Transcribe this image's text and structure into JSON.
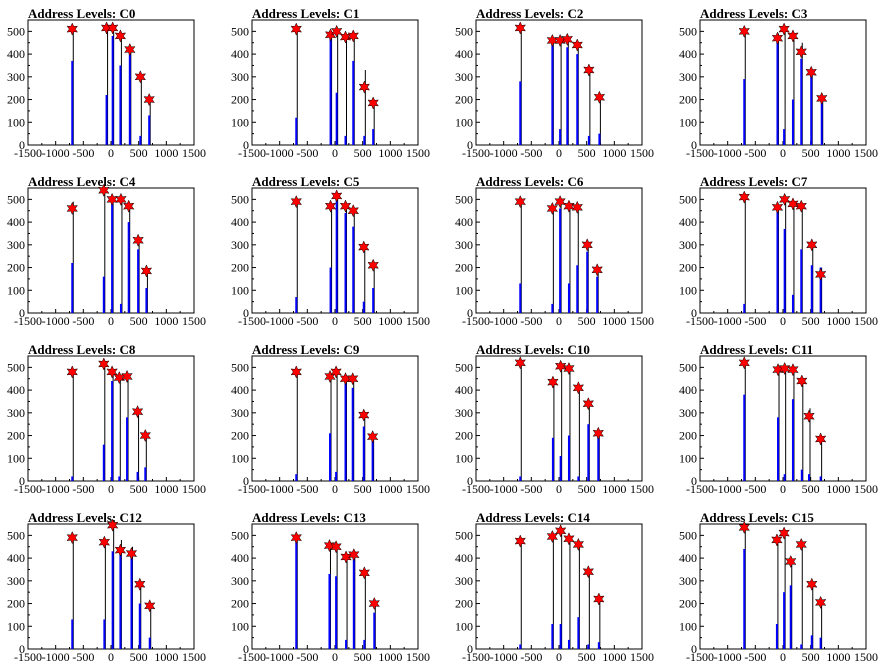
{
  "chart_data": [
    {
      "title": "Address Levels: C0",
      "type": "bar+markers",
      "peaks": [
        {
          "x": -700,
          "y": 510
        },
        {
          "x": -80,
          "y": 515
        },
        {
          "x": 30,
          "y": 515
        },
        {
          "x": 170,
          "y": 480
        },
        {
          "x": 340,
          "y": 420
        },
        {
          "x": 530,
          "y": 300
        },
        {
          "x": 690,
          "y": 200
        }
      ],
      "bars": [
        {
          "x": -700,
          "blue": 370,
          "black": 510
        },
        {
          "x": -80,
          "blue": 220,
          "black": 515
        },
        {
          "x": 30,
          "blue": 480,
          "black": 515
        },
        {
          "x": 170,
          "blue": 350,
          "black": 480
        },
        {
          "x": 340,
          "blue": 410,
          "black": 420
        },
        {
          "x": 530,
          "blue": 40,
          "black": 300
        },
        {
          "x": 690,
          "blue": 130,
          "black": 200
        }
      ]
    },
    {
      "title": "Address Levels: C1",
      "type": "bar+markers",
      "peaks": [
        {
          "x": -700,
          "y": 510
        },
        {
          "x": -80,
          "y": 485
        },
        {
          "x": 30,
          "y": 500
        },
        {
          "x": 190,
          "y": 475
        },
        {
          "x": 330,
          "y": 480
        },
        {
          "x": 530,
          "y": 255
        },
        {
          "x": 690,
          "y": 185
        }
      ],
      "bars": [
        {
          "x": -700,
          "blue": 120,
          "black": 510
        },
        {
          "x": -80,
          "blue": 480,
          "black": 485
        },
        {
          "x": 30,
          "blue": 230,
          "black": 500
        },
        {
          "x": 190,
          "blue": 40,
          "black": 475
        },
        {
          "x": 330,
          "blue": 370,
          "black": 480
        },
        {
          "x": 530,
          "blue": 40,
          "black": 330
        },
        {
          "x": 690,
          "blue": 70,
          "black": 190
        }
      ]
    },
    {
      "title": "Address Levels: C2",
      "type": "bar+markers",
      "peaks": [
        {
          "x": -700,
          "y": 515
        },
        {
          "x": -120,
          "y": 460
        },
        {
          "x": 20,
          "y": 460
        },
        {
          "x": 150,
          "y": 465
        },
        {
          "x": 330,
          "y": 440
        },
        {
          "x": 540,
          "y": 330
        },
        {
          "x": 730,
          "y": 210
        }
      ],
      "bars": [
        {
          "x": -700,
          "blue": 280,
          "black": 515
        },
        {
          "x": -120,
          "blue": 460,
          "black": 470
        },
        {
          "x": 20,
          "blue": 70,
          "black": 480
        },
        {
          "x": 150,
          "blue": 430,
          "black": 465
        },
        {
          "x": 330,
          "blue": 400,
          "black": 440
        },
        {
          "x": 540,
          "blue": 40,
          "black": 330
        },
        {
          "x": 730,
          "blue": 50,
          "black": 210
        }
      ]
    },
    {
      "title": "Address Levels: C3",
      "type": "bar+markers",
      "peaks": [
        {
          "x": -700,
          "y": 500
        },
        {
          "x": -100,
          "y": 470
        },
        {
          "x": 20,
          "y": 510
        },
        {
          "x": 180,
          "y": 480
        },
        {
          "x": 330,
          "y": 410
        },
        {
          "x": 510,
          "y": 320
        },
        {
          "x": 700,
          "y": 205
        }
      ],
      "bars": [
        {
          "x": -700,
          "blue": 290,
          "black": 500
        },
        {
          "x": -100,
          "blue": 480,
          "black": 490
        },
        {
          "x": 20,
          "blue": 70,
          "black": 510
        },
        {
          "x": 180,
          "blue": 200,
          "black": 480
        },
        {
          "x": 330,
          "blue": 380,
          "black": 450
        },
        {
          "x": 510,
          "blue": 320,
          "black": 330
        },
        {
          "x": 700,
          "blue": 200,
          "black": 210
        }
      ]
    },
    {
      "title": "Address Levels: C4",
      "type": "bar+markers",
      "peaks": [
        {
          "x": -700,
          "y": 460
        },
        {
          "x": -130,
          "y": 540
        },
        {
          "x": 20,
          "y": 500
        },
        {
          "x": 180,
          "y": 500
        },
        {
          "x": 320,
          "y": 470
        },
        {
          "x": 490,
          "y": 320
        },
        {
          "x": 640,
          "y": 185
        }
      ],
      "bars": [
        {
          "x": -700,
          "blue": 220,
          "black": 490
        },
        {
          "x": -130,
          "blue": 160,
          "black": 540
        },
        {
          "x": 20,
          "blue": 490,
          "black": 500
        },
        {
          "x": 180,
          "blue": 40,
          "black": 500
        },
        {
          "x": 320,
          "blue": 400,
          "black": 470
        },
        {
          "x": 490,
          "blue": 280,
          "black": 320
        },
        {
          "x": 640,
          "blue": 110,
          "black": 185
        }
      ]
    },
    {
      "title": "Address Levels: C5",
      "type": "bar+markers",
      "peaks": [
        {
          "x": -700,
          "y": 490
        },
        {
          "x": -80,
          "y": 470
        },
        {
          "x": 30,
          "y": 515
        },
        {
          "x": 190,
          "y": 470
        },
        {
          "x": 330,
          "y": 450
        },
        {
          "x": 520,
          "y": 290
        },
        {
          "x": 690,
          "y": 210
        }
      ],
      "bars": [
        {
          "x": -700,
          "blue": 70,
          "black": 490
        },
        {
          "x": -80,
          "blue": 200,
          "black": 470
        },
        {
          "x": 30,
          "blue": 500,
          "black": 515
        },
        {
          "x": 190,
          "blue": 440,
          "black": 470
        },
        {
          "x": 330,
          "blue": 380,
          "black": 450
        },
        {
          "x": 520,
          "blue": 50,
          "black": 290
        },
        {
          "x": 690,
          "blue": 110,
          "black": 210
        }
      ]
    },
    {
      "title": "Address Levels: C6",
      "type": "bar+markers",
      "peaks": [
        {
          "x": -700,
          "y": 490
        },
        {
          "x": -120,
          "y": 460
        },
        {
          "x": 20,
          "y": 490
        },
        {
          "x": 180,
          "y": 470
        },
        {
          "x": 330,
          "y": 465
        },
        {
          "x": 510,
          "y": 300
        },
        {
          "x": 690,
          "y": 190
        }
      ],
      "bars": [
        {
          "x": -700,
          "blue": 130,
          "black": 490
        },
        {
          "x": -120,
          "blue": 40,
          "black": 460
        },
        {
          "x": 20,
          "blue": 460,
          "black": 490
        },
        {
          "x": 180,
          "blue": 130,
          "black": 470
        },
        {
          "x": 330,
          "blue": 210,
          "black": 465
        },
        {
          "x": 510,
          "blue": 270,
          "black": 300
        },
        {
          "x": 690,
          "blue": 160,
          "black": 190
        }
      ]
    },
    {
      "title": "Address Levels: C7",
      "type": "bar+markers",
      "peaks": [
        {
          "x": -700,
          "y": 510
        },
        {
          "x": -100,
          "y": 465
        },
        {
          "x": 30,
          "y": 500
        },
        {
          "x": 180,
          "y": 480
        },
        {
          "x": 330,
          "y": 470
        },
        {
          "x": 520,
          "y": 300
        },
        {
          "x": 680,
          "y": 170
        }
      ],
      "bars": [
        {
          "x": -700,
          "blue": 40,
          "black": 510
        },
        {
          "x": -100,
          "blue": 460,
          "black": 480
        },
        {
          "x": 30,
          "blue": 370,
          "black": 500
        },
        {
          "x": 180,
          "blue": 80,
          "black": 480
        },
        {
          "x": 330,
          "blue": 280,
          "black": 470
        },
        {
          "x": 520,
          "blue": 210,
          "black": 300
        },
        {
          "x": 680,
          "blue": 200,
          "black": 200
        }
      ]
    },
    {
      "title": "Address Levels: C8",
      "type": "bar+markers",
      "peaks": [
        {
          "x": -700,
          "y": 480
        },
        {
          "x": -130,
          "y": 515
        },
        {
          "x": 20,
          "y": 480
        },
        {
          "x": 150,
          "y": 455
        },
        {
          "x": 290,
          "y": 460
        },
        {
          "x": 480,
          "y": 305
        },
        {
          "x": 620,
          "y": 200
        }
      ],
      "bars": [
        {
          "x": -700,
          "blue": 20,
          "black": 480
        },
        {
          "x": -130,
          "blue": 160,
          "black": 515
        },
        {
          "x": 20,
          "blue": 440,
          "black": 480
        },
        {
          "x": 150,
          "blue": 20,
          "black": 455
        },
        {
          "x": 290,
          "blue": 280,
          "black": 460
        },
        {
          "x": 480,
          "blue": 40,
          "black": 305
        },
        {
          "x": 620,
          "blue": 60,
          "black": 200
        }
      ]
    },
    {
      "title": "Address Levels: C9",
      "type": "bar+markers",
      "peaks": [
        {
          "x": -700,
          "y": 480
        },
        {
          "x": -90,
          "y": 460
        },
        {
          "x": 20,
          "y": 480
        },
        {
          "x": 190,
          "y": 450
        },
        {
          "x": 320,
          "y": 450
        },
        {
          "x": 520,
          "y": 290
        },
        {
          "x": 680,
          "y": 195
        }
      ],
      "bars": [
        {
          "x": -700,
          "blue": 30,
          "black": 480
        },
        {
          "x": -90,
          "blue": 210,
          "black": 470
        },
        {
          "x": 20,
          "blue": 40,
          "black": 480
        },
        {
          "x": 190,
          "blue": 440,
          "black": 450
        },
        {
          "x": 320,
          "blue": 410,
          "black": 450
        },
        {
          "x": 520,
          "blue": 240,
          "black": 290
        },
        {
          "x": 680,
          "blue": 180,
          "black": 195
        }
      ]
    },
    {
      "title": "Address Levels: C10",
      "type": "bar+markers",
      "peaks": [
        {
          "x": -700,
          "y": 520
        },
        {
          "x": -110,
          "y": 435
        },
        {
          "x": 30,
          "y": 505
        },
        {
          "x": 180,
          "y": 495
        },
        {
          "x": 350,
          "y": 410
        },
        {
          "x": 530,
          "y": 340
        },
        {
          "x": 710,
          "y": 210
        }
      ],
      "bars": [
        {
          "x": -700,
          "blue": 20,
          "black": 520
        },
        {
          "x": -110,
          "blue": 190,
          "black": 435
        },
        {
          "x": 30,
          "blue": 110,
          "black": 505
        },
        {
          "x": 180,
          "blue": 200,
          "black": 495
        },
        {
          "x": 350,
          "blue": 20,
          "black": 410
        },
        {
          "x": 530,
          "blue": 250,
          "black": 340
        },
        {
          "x": 710,
          "blue": 210,
          "black": 210
        }
      ]
    },
    {
      "title": "Address Levels: C11",
      "type": "bar+markers",
      "peaks": [
        {
          "x": -700,
          "y": 520
        },
        {
          "x": -90,
          "y": 490
        },
        {
          "x": 30,
          "y": 495
        },
        {
          "x": 180,
          "y": 490
        },
        {
          "x": 340,
          "y": 440
        },
        {
          "x": 470,
          "y": 285
        },
        {
          "x": 680,
          "y": 185
        }
      ],
      "bars": [
        {
          "x": -700,
          "blue": 380,
          "black": 520
        },
        {
          "x": -90,
          "blue": 280,
          "black": 490
        },
        {
          "x": 30,
          "blue": 30,
          "black": 495
        },
        {
          "x": 180,
          "blue": 360,
          "black": 490
        },
        {
          "x": 340,
          "blue": 50,
          "black": 440
        },
        {
          "x": 470,
          "blue": 30,
          "black": 320
        },
        {
          "x": 680,
          "blue": 20,
          "black": 185
        }
      ]
    },
    {
      "title": "Address Levels: C12",
      "type": "bar+markers",
      "peaks": [
        {
          "x": -700,
          "y": 490
        },
        {
          "x": -120,
          "y": 470
        },
        {
          "x": 30,
          "y": 545
        },
        {
          "x": 170,
          "y": 435
        },
        {
          "x": 370,
          "y": 420
        },
        {
          "x": 520,
          "y": 285
        },
        {
          "x": 700,
          "y": 190
        }
      ],
      "bars": [
        {
          "x": -700,
          "blue": 130,
          "black": 490
        },
        {
          "x": -120,
          "blue": 130,
          "black": 470
        },
        {
          "x": 30,
          "blue": 430,
          "black": 545
        },
        {
          "x": 170,
          "blue": 420,
          "black": 480
        },
        {
          "x": 370,
          "blue": 420,
          "black": 450
        },
        {
          "x": 520,
          "blue": 200,
          "black": 285
        },
        {
          "x": 700,
          "blue": 50,
          "black": 190
        }
      ]
    },
    {
      "title": "Address Levels: C13",
      "type": "bar+markers",
      "peaks": [
        {
          "x": -700,
          "y": 490
        },
        {
          "x": -100,
          "y": 455
        },
        {
          "x": 20,
          "y": 450
        },
        {
          "x": 200,
          "y": 405
        },
        {
          "x": 340,
          "y": 415
        },
        {
          "x": 530,
          "y": 335
        },
        {
          "x": 710,
          "y": 200
        }
      ],
      "bars": [
        {
          "x": -700,
          "blue": 470,
          "black": 490
        },
        {
          "x": -100,
          "blue": 330,
          "black": 455
        },
        {
          "x": 20,
          "blue": 320,
          "black": 450
        },
        {
          "x": 200,
          "blue": 40,
          "black": 405
        },
        {
          "x": 340,
          "blue": 410,
          "black": 430
        },
        {
          "x": 530,
          "blue": 40,
          "black": 335
        },
        {
          "x": 710,
          "blue": 160,
          "black": 200
        }
      ]
    },
    {
      "title": "Address Levels: C14",
      "type": "bar+markers",
      "peaks": [
        {
          "x": -700,
          "y": 475
        },
        {
          "x": -120,
          "y": 495
        },
        {
          "x": 30,
          "y": 520
        },
        {
          "x": 180,
          "y": 485
        },
        {
          "x": 350,
          "y": 460
        },
        {
          "x": 530,
          "y": 340
        },
        {
          "x": 720,
          "y": 220
        }
      ],
      "bars": [
        {
          "x": -700,
          "blue": 20,
          "black": 475
        },
        {
          "x": -120,
          "blue": 110,
          "black": 495
        },
        {
          "x": 30,
          "blue": 110,
          "black": 520
        },
        {
          "x": 180,
          "blue": 40,
          "black": 485
        },
        {
          "x": 350,
          "blue": 140,
          "black": 460
        },
        {
          "x": 530,
          "blue": 20,
          "black": 340
        },
        {
          "x": 720,
          "blue": 30,
          "black": 220
        }
      ]
    },
    {
      "title": "Address Levels: C15",
      "type": "bar+markers",
      "peaks": [
        {
          "x": -700,
          "y": 535
        },
        {
          "x": -110,
          "y": 480
        },
        {
          "x": 20,
          "y": 510
        },
        {
          "x": 140,
          "y": 385
        },
        {
          "x": 330,
          "y": 460
        },
        {
          "x": 520,
          "y": 285
        },
        {
          "x": 680,
          "y": 205
        }
      ],
      "bars": [
        {
          "x": -700,
          "blue": 440,
          "black": 535
        },
        {
          "x": -110,
          "blue": 110,
          "black": 480
        },
        {
          "x": 20,
          "blue": 250,
          "black": 510
        },
        {
          "x": 140,
          "blue": 280,
          "black": 385
        },
        {
          "x": 330,
          "blue": 20,
          "black": 460
        },
        {
          "x": 520,
          "blue": 60,
          "black": 285
        },
        {
          "x": 680,
          "blue": 50,
          "black": 205
        }
      ]
    }
  ],
  "axes": {
    "xlim": [
      -1500,
      1500
    ],
    "ylim": [
      0,
      550
    ],
    "xticks": [
      "-1500",
      "-1000",
      "-500",
      "0",
      "500",
      "1000",
      "1500"
    ],
    "yticks": [
      "100",
      "200",
      "300",
      "400",
      "500"
    ],
    "ytick_values": [
      100,
      200,
      300,
      400,
      500
    ],
    "zero_label": "0",
    "grid": false
  },
  "colors": {
    "bar_blue": "#0000ff",
    "bar_black": "#000000",
    "marker": "#ff0000",
    "marker_edge": "#000000"
  }
}
